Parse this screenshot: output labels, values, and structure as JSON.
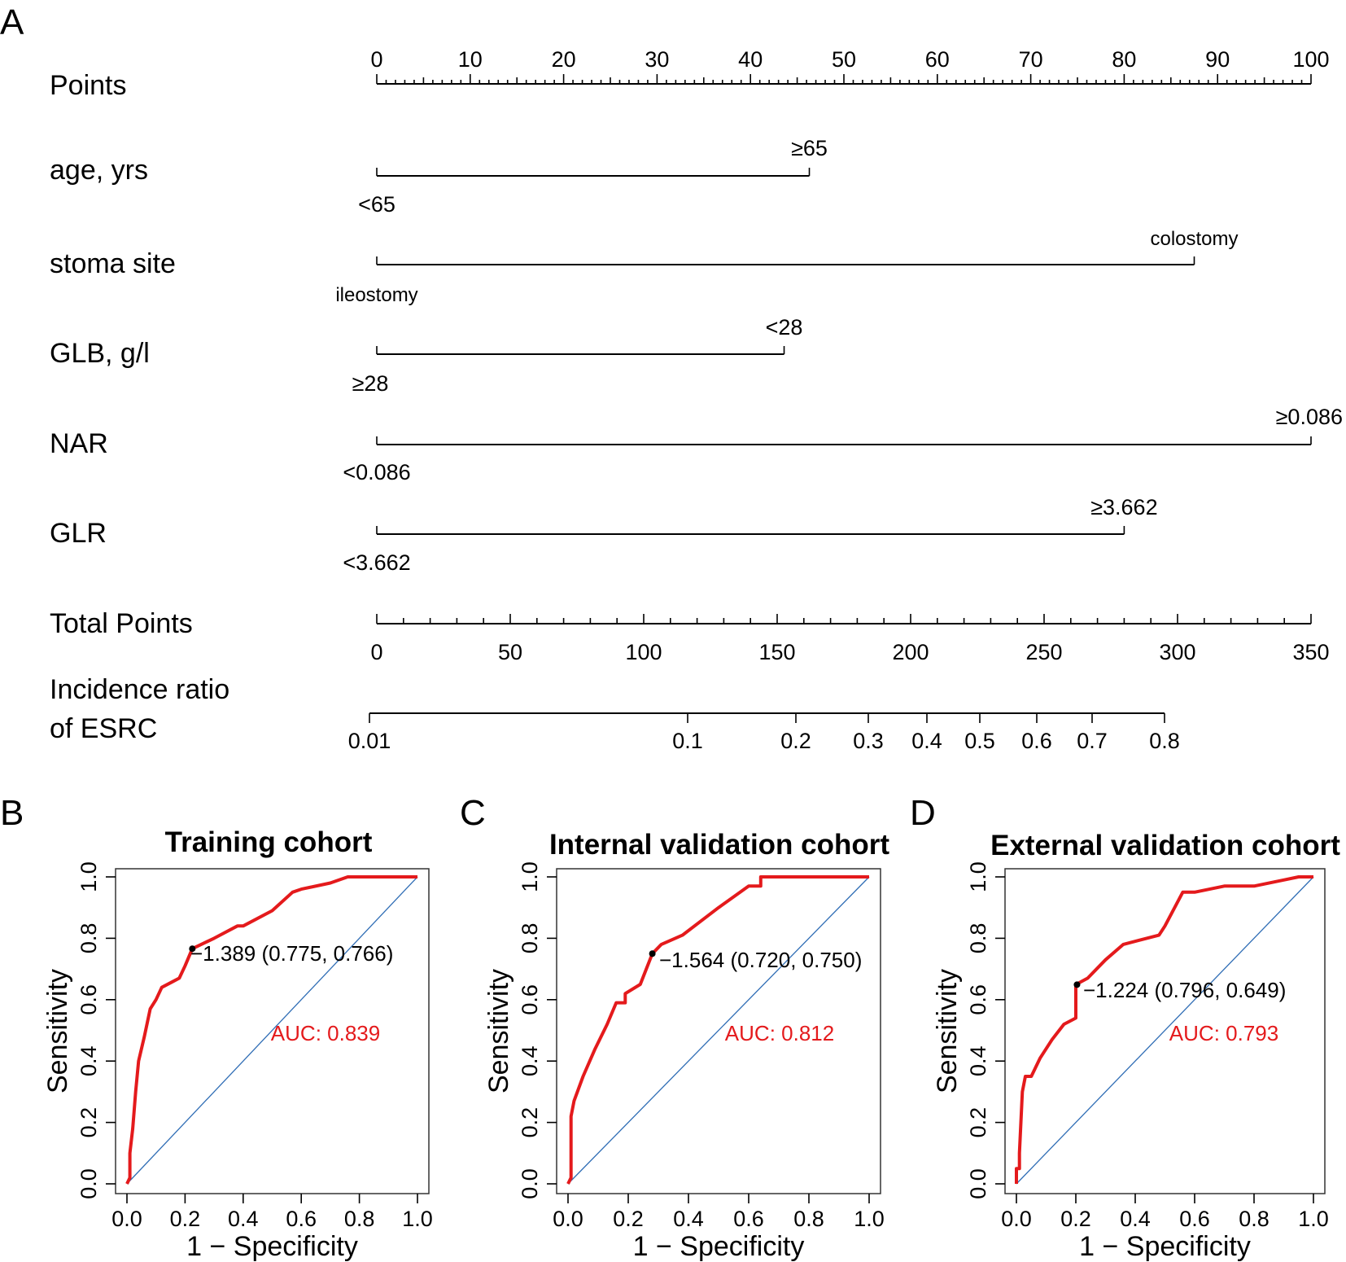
{
  "panel_labels": {
    "a": "A",
    "b": "B",
    "c": "C",
    "d": "D"
  },
  "nomogram": {
    "points_label": "Points",
    "points_ticks": [
      0,
      10,
      20,
      30,
      40,
      50,
      60,
      70,
      80,
      90,
      100
    ],
    "rows": [
      {
        "label": "age, yrs",
        "low": "<65",
        "high": "≥65",
        "high_points": 46.3
      },
      {
        "label": "stoma site",
        "low": "ileostomy",
        "high": "colostomy",
        "high_points": 87.5
      },
      {
        "label": "GLB, g/l",
        "low": "≥28",
        "high": "<28",
        "high_points": 43.6
      },
      {
        "label": "NAR",
        "low": "<0.086",
        "high": "≥0.086",
        "high_points": 100
      },
      {
        "label": "GLR",
        "low": "<3.662",
        "high": "≥3.662",
        "high_points": 80.0
      }
    ],
    "total_label": "Total Points",
    "total_ticks": [
      0,
      50,
      100,
      150,
      200,
      250,
      300,
      350
    ],
    "incidence_label_1": "Incidence ratio",
    "incidence_label_2": "of ESRC",
    "incidence_ticks": [
      "0.01",
      "0.1",
      "0.2",
      "0.3",
      "0.4",
      "0.5",
      "0.6",
      "0.7",
      "0.8"
    ]
  },
  "chart_data": [
    {
      "type": "line",
      "title": "Training cohort",
      "xlabel": "1 − Specificity",
      "ylabel": "Sensitivity",
      "xlim": [
        0,
        1
      ],
      "ylim": [
        0,
        1
      ],
      "ticks": [
        "0.0",
        "0.2",
        "0.4",
        "0.6",
        "0.8",
        "1.0"
      ],
      "auc_text": "AUC: 0.839",
      "threshold_text": "−1.389 (0.775, 0.766)",
      "threshold_point": [
        0.225,
        0.766
      ],
      "x": [
        0,
        0.01,
        0.01,
        0.02,
        0.03,
        0.04,
        0.06,
        0.08,
        0.1,
        0.12,
        0.16,
        0.18,
        0.2,
        0.225,
        0.3,
        0.38,
        0.4,
        0.5,
        0.57,
        0.6,
        0.7,
        0.76,
        0.8,
        0.9,
        1.0
      ],
      "y": [
        0,
        0.02,
        0.1,
        0.18,
        0.3,
        0.4,
        0.48,
        0.57,
        0.6,
        0.64,
        0.66,
        0.67,
        0.71,
        0.766,
        0.8,
        0.84,
        0.84,
        0.89,
        0.95,
        0.96,
        0.98,
        1.0,
        1.0,
        1.0,
        1.0
      ]
    },
    {
      "type": "line",
      "title": "Internal validation cohort",
      "xlabel": "1 − Specificity",
      "ylabel": "Sensitivity",
      "xlim": [
        0,
        1
      ],
      "ylim": [
        0,
        1
      ],
      "ticks": [
        "0.0",
        "0.2",
        "0.4",
        "0.6",
        "0.8",
        "1.0"
      ],
      "auc_text": "AUC: 0.812",
      "threshold_text": "−1.564 (0.720, 0.750)",
      "threshold_point": [
        0.28,
        0.75
      ],
      "x": [
        0,
        0.01,
        0.01,
        0.02,
        0.05,
        0.09,
        0.13,
        0.16,
        0.19,
        0.19,
        0.24,
        0.26,
        0.28,
        0.31,
        0.38,
        0.5,
        0.6,
        0.64,
        0.64,
        0.7,
        0.8,
        0.9,
        1.0
      ],
      "y": [
        0,
        0.02,
        0.22,
        0.27,
        0.35,
        0.44,
        0.52,
        0.59,
        0.59,
        0.62,
        0.65,
        0.7,
        0.75,
        0.78,
        0.81,
        0.9,
        0.97,
        0.97,
        1.0,
        1.0,
        1.0,
        1.0,
        1.0
      ]
    },
    {
      "type": "line",
      "title": "External validation cohort",
      "xlabel": "1 − Specificity",
      "ylabel": "Sensitivity",
      "xlim": [
        0,
        1
      ],
      "ylim": [
        0,
        1
      ],
      "ticks": [
        "0.0",
        "0.2",
        "0.4",
        "0.6",
        "0.8",
        "1.0"
      ],
      "auc_text": "AUC: 0.793",
      "threshold_text": "−1.224 (0.796, 0.649)",
      "threshold_point": [
        0.204,
        0.649
      ],
      "x": [
        0,
        0,
        0.01,
        0.01,
        0.02,
        0.03,
        0.05,
        0.08,
        0.12,
        0.16,
        0.2,
        0.2,
        0.24,
        0.3,
        0.36,
        0.48,
        0.5,
        0.56,
        0.6,
        0.7,
        0.8,
        0.9,
        0.95,
        1.0
      ],
      "y": [
        0,
        0.05,
        0.05,
        0.1,
        0.3,
        0.35,
        0.35,
        0.41,
        0.47,
        0.52,
        0.54,
        0.649,
        0.67,
        0.73,
        0.78,
        0.81,
        0.84,
        0.95,
        0.95,
        0.97,
        0.97,
        0.99,
        1.0,
        1.0
      ]
    }
  ]
}
